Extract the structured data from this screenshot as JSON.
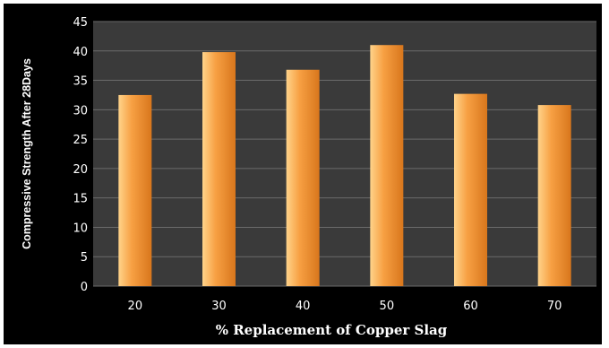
{
  "chart_data": {
    "type": "bar",
    "categories": [
      "20",
      "30",
      "40",
      "50",
      "60",
      "70"
    ],
    "values": [
      32.5,
      39.8,
      36.8,
      41.0,
      32.7,
      30.8
    ],
    "xlabel": "% Replacement of Copper Slag",
    "ylabel": "Compressive Strength After 28Days",
    "ylim": [
      0,
      45
    ],
    "yticks": [
      0,
      5,
      10,
      15,
      20,
      25,
      30,
      35,
      40,
      45
    ],
    "grid": true,
    "legend": "none",
    "colors": {
      "background": "#000000",
      "plot_area": "#3a3a3a",
      "gridline": "#6a6a6a",
      "bar_light": "#ffd38a",
      "bar_mid": "#f7a043",
      "bar_dark": "#d8761c"
    }
  }
}
